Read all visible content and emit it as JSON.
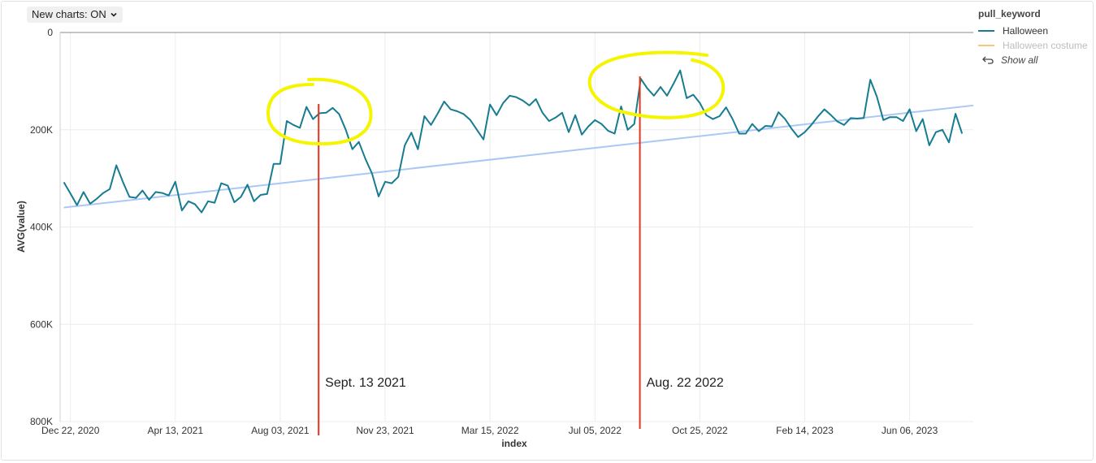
{
  "toolbar": {
    "new_charts_label": "New charts: ON"
  },
  "legend": {
    "title": "pull_keyword",
    "items": [
      {
        "label": "Halloween",
        "color": "#177c91",
        "active": true
      },
      {
        "label": "Halloween costume",
        "color": "#f5c77a",
        "active": false
      }
    ],
    "show_all_label": "Show all"
  },
  "annotations": [
    {
      "label": "Sept. 13 2021",
      "date": "2021-09-13",
      "color": "#e8341c"
    },
    {
      "label": "Aug. 22 2022",
      "date": "2022-08-22",
      "color": "#e8341c"
    }
  ],
  "highlight_color": "#f5f500",
  "chart_data": {
    "type": "line",
    "title": "",
    "xlabel": "index",
    "ylabel": "AVG(value)",
    "y_reversed": true,
    "ylim": [
      0,
      800000
    ],
    "xlim": [
      "2020-12-11",
      "2023-08-13"
    ],
    "y_ticks": [
      0,
      200000,
      400000,
      600000,
      800000
    ],
    "y_tick_labels": [
      "0",
      "200K",
      "400K",
      "600K",
      "800K"
    ],
    "x_ticks": [
      "2020-12-22",
      "2021-04-13",
      "2021-08-03",
      "2021-11-23",
      "2022-03-15",
      "2022-07-05",
      "2022-10-25",
      "2023-02-14",
      "2023-06-06"
    ],
    "x_tick_labels": [
      "Dec 22, 2020",
      "Apr 13, 2021",
      "Aug 03, 2021",
      "Nov 23, 2021",
      "Mar 15, 2022",
      "Jul 05, 2022",
      "Oct 25, 2022",
      "Feb 14, 2023",
      "Jun 06, 2023"
    ],
    "grid": true,
    "legend_position": "top-right",
    "series": [
      {
        "name": "Halloween",
        "color": "#177c91",
        "start": "2020-12-15",
        "step_days": 7,
        "values": [
          308000,
          331000,
          355000,
          328000,
          352000,
          342000,
          330000,
          322000,
          273000,
          307000,
          338000,
          340000,
          325000,
          344000,
          328000,
          330000,
          335000,
          307000,
          366000,
          347000,
          353000,
          370000,
          347000,
          350000,
          310000,
          315000,
          349000,
          338000,
          313000,
          347000,
          334000,
          332000,
          270000,
          270000,
          182000,
          190000,
          196000,
          153000,
          178000,
          166000,
          165000,
          155000,
          168000,
          200000,
          240000,
          225000,
          260000,
          290000,
          337000,
          307000,
          310000,
          297000,
          232000,
          206000,
          240000,
          172000,
          190000,
          167000,
          142000,
          158000,
          162000,
          168000,
          180000,
          200000,
          220000,
          148000,
          170000,
          145000,
          130000,
          133000,
          140000,
          150000,
          137000,
          165000,
          182000,
          175000,
          165000,
          205000,
          170000,
          210000,
          193000,
          180000,
          188000,
          202000,
          208000,
          152000,
          200000,
          188000,
          95000,
          115000,
          130000,
          112000,
          130000,
          105000,
          78000,
          135000,
          128000,
          145000,
          170000,
          178000,
          172000,
          154000,
          178000,
          208000,
          208000,
          188000,
          203000,
          192000,
          193000,
          164000,
          178000,
          198000,
          215000,
          205000,
          190000,
          173000,
          158000,
          170000,
          183000,
          190000,
          176000,
          177000,
          176000,
          97000,
          132000,
          180000,
          174000,
          174000,
          182000,
          158000,
          203000,
          178000,
          232000,
          205000,
          200000,
          226000,
          167000,
          208000
        ]
      },
      {
        "name": "Halloween costume",
        "color": "#f5c77a",
        "values": []
      }
    ],
    "trendline": {
      "color": "#aac8f6",
      "start": [
        "2020-12-15",
        360000
      ],
      "end": [
        "2023-08-13",
        150000
      ]
    }
  }
}
